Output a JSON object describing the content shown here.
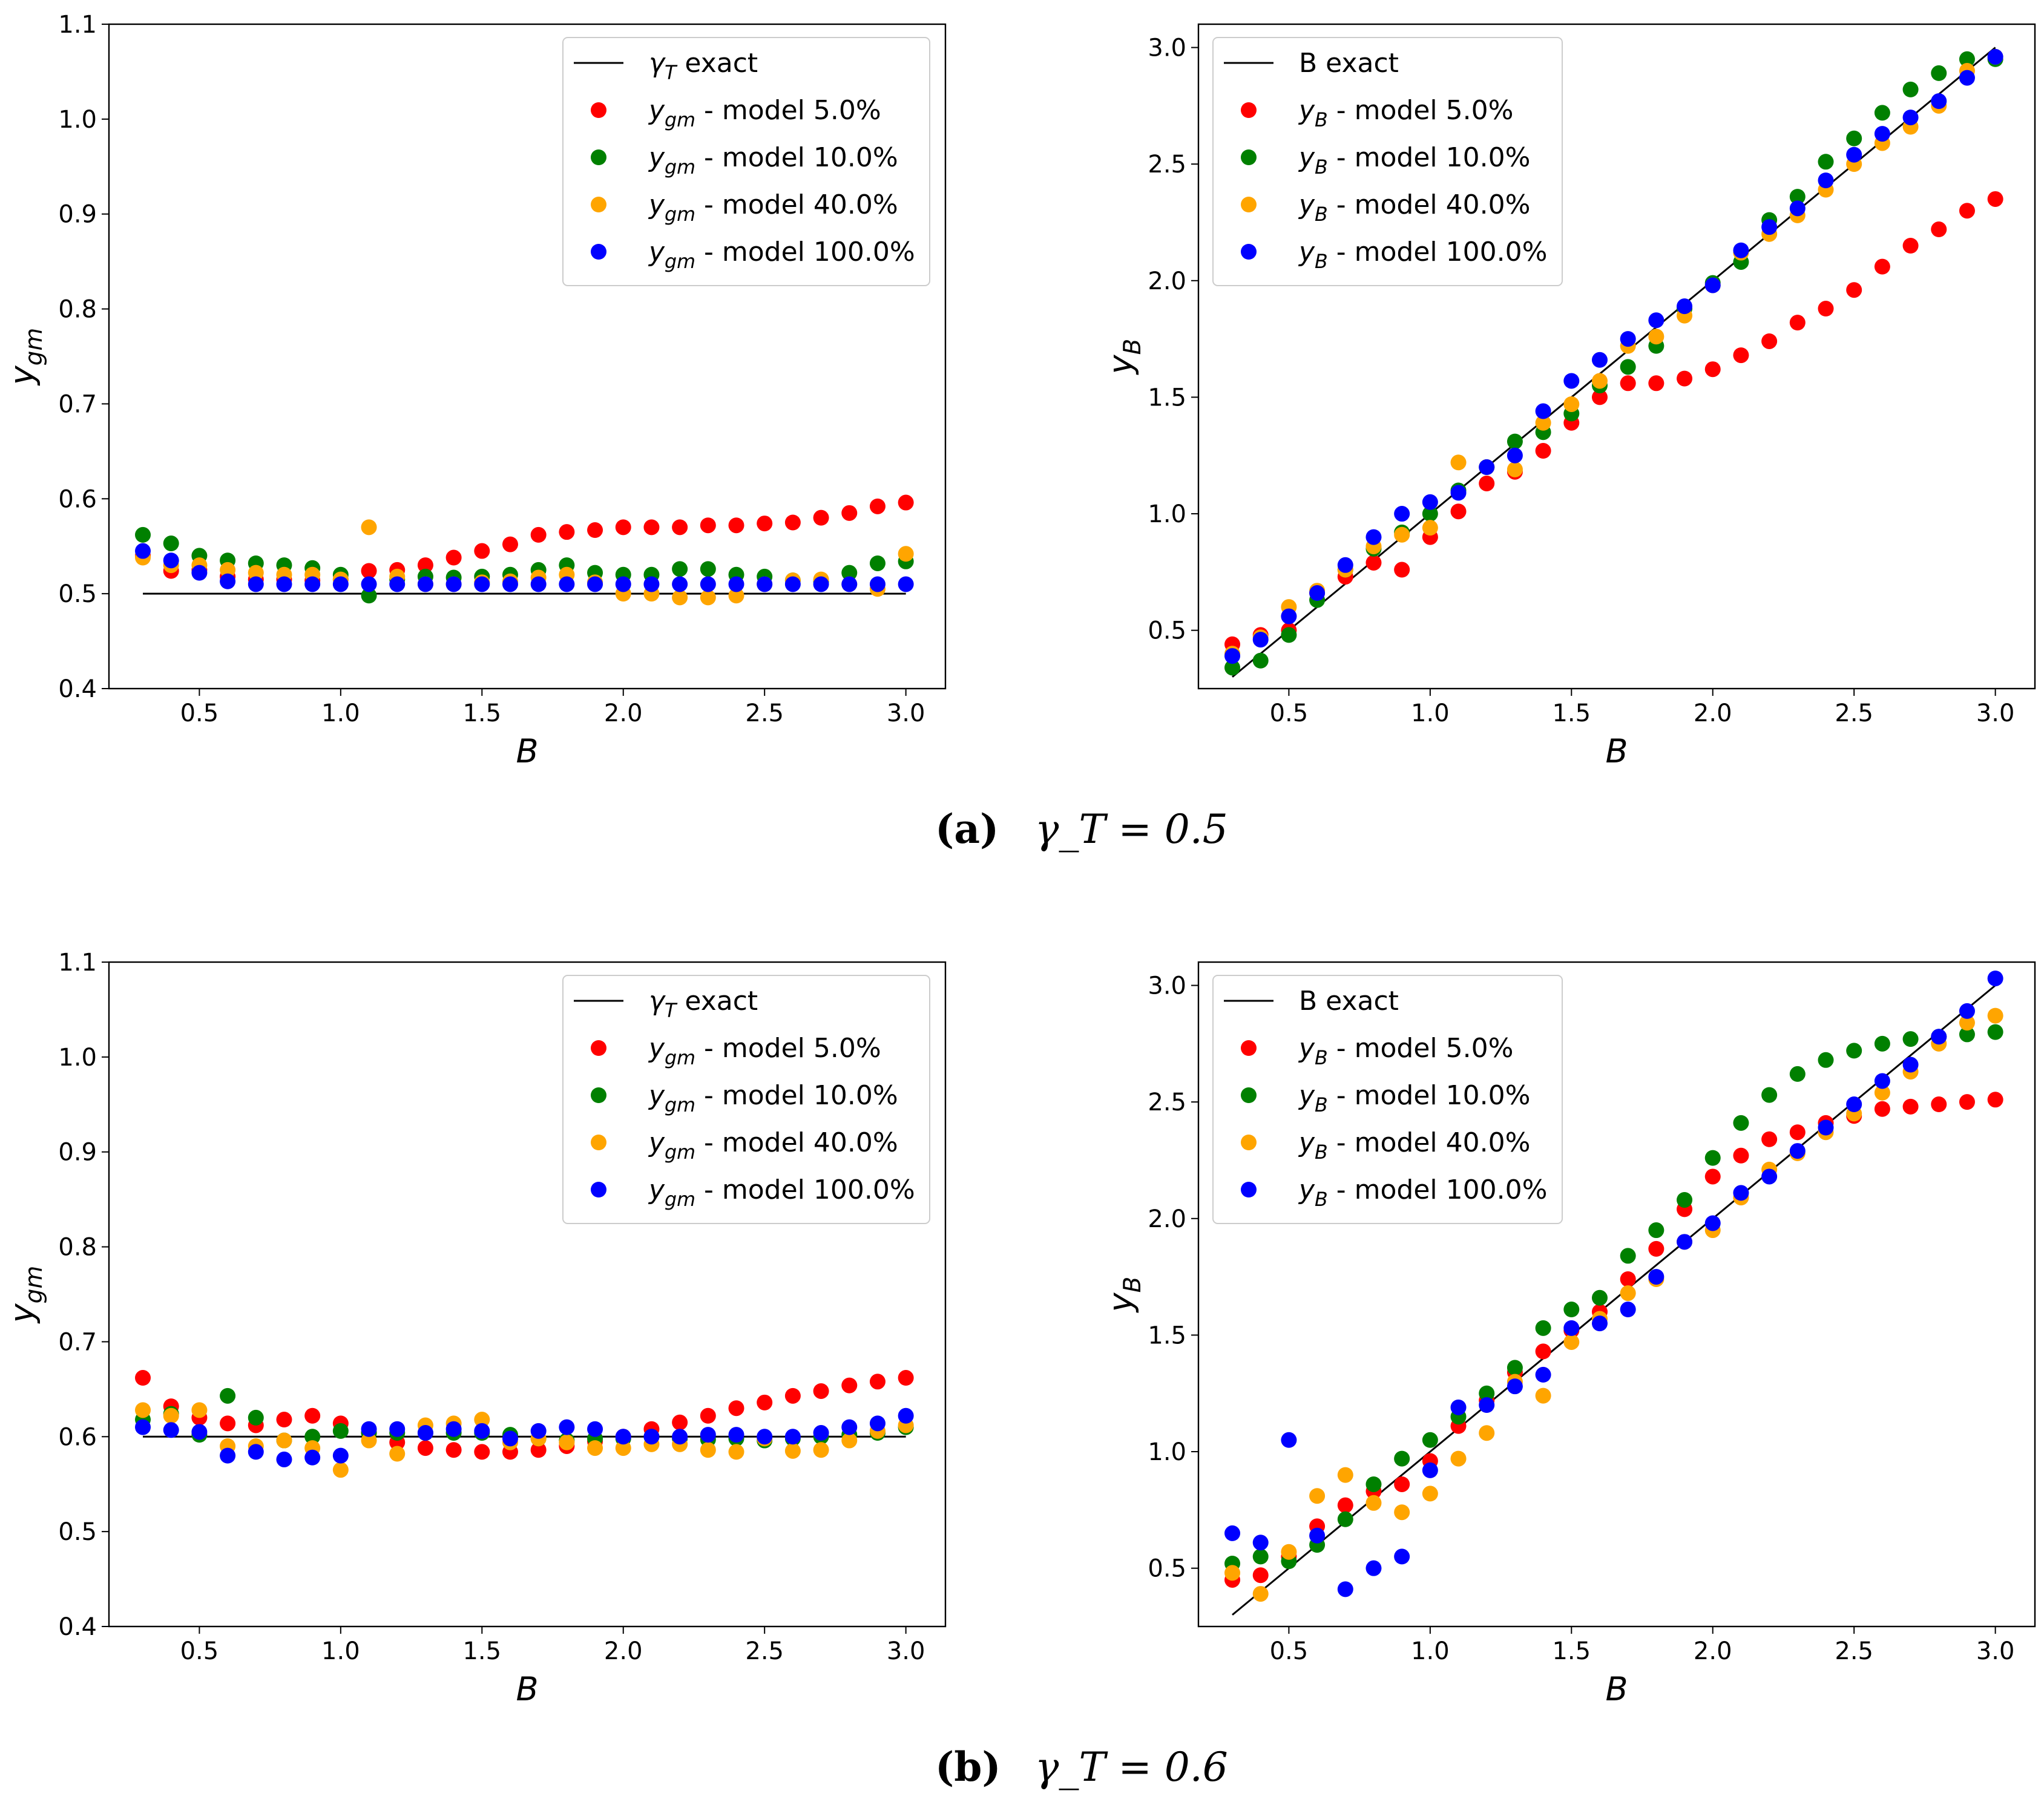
{
  "colors": {
    "model5": "#ff0000",
    "model10": "#008000",
    "model40": "#ffa500",
    "model100": "#0000ff",
    "exact": "#000000"
  },
  "captions": [
    {
      "label": "(a)",
      "text": "γ_T = 0.5"
    },
    {
      "label": "(b)",
      "text": "γ_T = 0.6"
    }
  ],
  "chart_data": [
    {
      "id": "a-left",
      "type": "scatter",
      "xlabel": "B",
      "ylabel": "y_gm",
      "xlim": [
        0.18,
        3.14
      ],
      "ylim": [
        0.4,
        1.1
      ],
      "xticks": [
        "0.5",
        "1.0",
        "1.5",
        "2.0",
        "2.5",
        "3.0"
      ],
      "yticks": [
        "0.4",
        "0.5",
        "0.6",
        "0.7",
        "0.8",
        "0.9",
        "1.0",
        "1.1"
      ],
      "legend_position": "top-right",
      "legend": [
        "γ_T exact",
        "y_gm - model 5.0%",
        "y_gm - model 10.0%",
        "y_gm - model 40.0%",
        "y_gm - model 100.0%"
      ],
      "x": [
        0.3,
        0.4,
        0.5,
        0.6,
        0.7,
        0.8,
        0.9,
        1.0,
        1.1,
        1.2,
        1.3,
        1.4,
        1.5,
        1.6,
        1.7,
        1.8,
        1.9,
        2.0,
        2.1,
        2.2,
        2.3,
        2.4,
        2.5,
        2.6,
        2.7,
        2.8,
        2.9,
        3.0
      ],
      "exact": {
        "x": [
          0.3,
          3.0
        ],
        "y": [
          0.5,
          0.5
        ]
      },
      "series": [
        {
          "name": "model 5.0%",
          "color_key": "model5",
          "values": [
            0.54,
            0.524,
            0.525,
            0.518,
            0.515,
            0.515,
            0.514,
            0.515,
            0.524,
            0.525,
            0.53,
            0.538,
            0.545,
            0.552,
            0.562,
            0.565,
            0.567,
            0.57,
            0.57,
            0.57,
            0.572,
            0.572,
            0.574,
            0.575,
            0.58,
            0.585,
            0.592,
            0.596
          ]
        },
        {
          "name": "model 10.0%",
          "color_key": "model10",
          "values": [
            0.562,
            0.553,
            0.54,
            0.535,
            0.532,
            0.53,
            0.527,
            0.52,
            0.498,
            0.515,
            0.518,
            0.517,
            0.518,
            0.52,
            0.525,
            0.53,
            0.522,
            0.52,
            0.52,
            0.526,
            0.526,
            0.52,
            0.518,
            0.514,
            0.513,
            0.522,
            0.532,
            0.534
          ]
        },
        {
          "name": "model 40.0%",
          "color_key": "model40",
          "values": [
            0.538,
            0.53,
            0.53,
            0.525,
            0.522,
            0.52,
            0.52,
            0.515,
            0.57,
            0.518,
            0.51,
            0.51,
            0.512,
            0.513,
            0.517,
            0.52,
            0.512,
            0.5,
            0.5,
            0.496,
            0.496,
            0.498,
            0.51,
            0.514,
            0.515,
            0.51,
            0.505,
            0.542
          ]
        },
        {
          "name": "model 100.0%",
          "color_key": "model100",
          "values": [
            0.545,
            0.535,
            0.522,
            0.513,
            0.51,
            0.51,
            0.51,
            0.51,
            0.51,
            0.51,
            0.51,
            0.51,
            0.51,
            0.51,
            0.51,
            0.51,
            0.51,
            0.51,
            0.51,
            0.51,
            0.51,
            0.51,
            0.51,
            0.51,
            0.51,
            0.51,
            0.51,
            0.51
          ]
        }
      ]
    },
    {
      "id": "a-right",
      "type": "scatter",
      "xlabel": "B",
      "ylabel": "y_B",
      "xlim": [
        0.18,
        3.14
      ],
      "ylim": [
        0.25,
        3.1
      ],
      "xticks": [
        "0.5",
        "1.0",
        "1.5",
        "2.0",
        "2.5",
        "3.0"
      ],
      "yticks": [
        "0.5",
        "1.0",
        "1.5",
        "2.0",
        "2.5",
        "3.0"
      ],
      "legend_position": "top-left",
      "legend": [
        "B exact",
        "y_B - model 5.0%",
        "y_B - model 10.0%",
        "y_B - model 40.0%",
        "y_B - model 100.0%"
      ],
      "x": [
        0.3,
        0.4,
        0.5,
        0.6,
        0.7,
        0.8,
        0.9,
        1.0,
        1.1,
        1.2,
        1.3,
        1.4,
        1.5,
        1.6,
        1.7,
        1.8,
        1.9,
        2.0,
        2.1,
        2.2,
        2.3,
        2.4,
        2.5,
        2.6,
        2.7,
        2.8,
        2.9,
        3.0
      ],
      "exact": {
        "x": [
          0.3,
          3.0
        ],
        "y": [
          0.3,
          3.0
        ]
      },
      "series": [
        {
          "name": "model 5.0%",
          "color_key": "model5",
          "values": [
            0.44,
            0.48,
            0.5,
            0.66,
            0.73,
            0.79,
            0.76,
            0.9,
            1.01,
            1.13,
            1.18,
            1.27,
            1.39,
            1.5,
            1.56,
            1.56,
            1.58,
            1.62,
            1.68,
            1.74,
            1.82,
            1.88,
            1.96,
            2.06,
            2.15,
            2.22,
            2.3,
            2.35
          ]
        },
        {
          "name": "model 10.0%",
          "color_key": "model10",
          "values": [
            0.34,
            0.37,
            0.48,
            0.63,
            0.76,
            0.85,
            0.92,
            1.0,
            1.1,
            1.2,
            1.31,
            1.35,
            1.43,
            1.55,
            1.63,
            1.72,
            1.88,
            1.99,
            2.08,
            2.26,
            2.36,
            2.51,
            2.61,
            2.72,
            2.82,
            2.89,
            2.95,
            2.95
          ]
        },
        {
          "name": "model 40.0%",
          "color_key": "model40",
          "values": [
            0.4,
            0.47,
            0.6,
            0.67,
            0.76,
            0.86,
            0.91,
            0.94,
            1.22,
            1.2,
            1.19,
            1.39,
            1.47,
            1.57,
            1.72,
            1.76,
            1.85,
            1.98,
            2.12,
            2.2,
            2.28,
            2.39,
            2.5,
            2.59,
            2.66,
            2.75,
            2.9,
            2.96
          ]
        },
        {
          "name": "model 100.0%",
          "color_key": "model100",
          "values": [
            0.39,
            0.46,
            0.56,
            0.66,
            0.78,
            0.9,
            1.0,
            1.05,
            1.09,
            1.2,
            1.25,
            1.44,
            1.57,
            1.66,
            1.75,
            1.83,
            1.89,
            1.98,
            2.13,
            2.23,
            2.31,
            2.43,
            2.54,
            2.63,
            2.7,
            2.77,
            2.87,
            2.96
          ]
        }
      ]
    },
    {
      "id": "b-left",
      "type": "scatter",
      "xlabel": "B",
      "ylabel": "y_gm",
      "xlim": [
        0.18,
        3.14
      ],
      "ylim": [
        0.4,
        1.1
      ],
      "xticks": [
        "0.5",
        "1.0",
        "1.5",
        "2.0",
        "2.5",
        "3.0"
      ],
      "yticks": [
        "0.4",
        "0.5",
        "0.6",
        "0.7",
        "0.8",
        "0.9",
        "1.0",
        "1.1"
      ],
      "legend_position": "top-right",
      "legend": [
        "γ_T exact",
        "y_gm - model 5.0%",
        "y_gm - model 10.0%",
        "y_gm - model 40.0%",
        "y_gm - model 100.0%"
      ],
      "x": [
        0.3,
        0.4,
        0.5,
        0.6,
        0.7,
        0.8,
        0.9,
        1.0,
        1.1,
        1.2,
        1.3,
        1.4,
        1.5,
        1.6,
        1.7,
        1.8,
        1.9,
        2.0,
        2.1,
        2.2,
        2.3,
        2.4,
        2.5,
        2.6,
        2.7,
        2.8,
        2.9,
        3.0
      ],
      "exact": {
        "x": [
          0.3,
          3.0
        ],
        "y": [
          0.6,
          0.6
        ]
      },
      "series": [
        {
          "name": "model 5.0%",
          "color_key": "model5",
          "values": [
            0.662,
            0.632,
            0.62,
            0.614,
            0.612,
            0.618,
            0.622,
            0.614,
            0.604,
            0.594,
            0.588,
            0.586,
            0.584,
            0.584,
            0.586,
            0.59,
            0.595,
            0.6,
            0.608,
            0.615,
            0.622,
            0.63,
            0.636,
            0.643,
            0.648,
            0.654,
            0.658,
            0.662
          ]
        },
        {
          "name": "model 10.0%",
          "color_key": "model10",
          "values": [
            0.618,
            0.624,
            0.602,
            0.643,
            0.62,
            0.596,
            0.6,
            0.606,
            0.604,
            0.604,
            0.604,
            0.604,
            0.604,
            0.602,
            0.598,
            0.596,
            0.598,
            0.598,
            0.6,
            0.598,
            0.597,
            0.598,
            0.596,
            0.598,
            0.6,
            0.602,
            0.604,
            0.61
          ]
        },
        {
          "name": "model 40.0%",
          "color_key": "model40",
          "values": [
            0.628,
            0.622,
            0.628,
            0.59,
            0.59,
            0.596,
            0.588,
            0.565,
            0.596,
            0.582,
            0.612,
            0.614,
            0.618,
            0.594,
            0.598,
            0.594,
            0.588,
            0.588,
            0.592,
            0.592,
            0.586,
            0.584,
            0.598,
            0.585,
            0.586,
            0.596,
            0.606,
            0.612
          ]
        },
        {
          "name": "model 100.0%",
          "color_key": "model100",
          "values": [
            0.61,
            0.607,
            0.605,
            0.58,
            0.584,
            0.576,
            0.578,
            0.58,
            0.608,
            0.608,
            0.604,
            0.608,
            0.606,
            0.598,
            0.606,
            0.61,
            0.608,
            0.6,
            0.6,
            0.6,
            0.602,
            0.602,
            0.6,
            0.6,
            0.604,
            0.61,
            0.614,
            0.622
          ]
        }
      ]
    },
    {
      "id": "b-right",
      "type": "scatter",
      "xlabel": "B",
      "ylabel": "y_B",
      "xlim": [
        0.18,
        3.14
      ],
      "ylim": [
        0.25,
        3.1
      ],
      "xticks": [
        "0.5",
        "1.0",
        "1.5",
        "2.0",
        "2.5",
        "3.0"
      ],
      "yticks": [
        "0.5",
        "1.0",
        "1.5",
        "2.0",
        "2.5",
        "3.0"
      ],
      "legend_position": "top-left",
      "legend": [
        "B exact",
        "y_B - model 5.0%",
        "y_B - model 10.0%",
        "y_B - model 40.0%",
        "y_B - model 100.0%"
      ],
      "x": [
        0.3,
        0.4,
        0.5,
        0.6,
        0.7,
        0.8,
        0.9,
        1.0,
        1.1,
        1.2,
        1.3,
        1.4,
        1.5,
        1.6,
        1.7,
        1.8,
        1.9,
        2.0,
        2.1,
        2.2,
        2.3,
        2.4,
        2.5,
        2.6,
        2.7,
        2.8,
        2.9,
        3.0
      ],
      "exact": {
        "x": [
          0.3,
          3.0
        ],
        "y": [
          0.3,
          3.0
        ]
      },
      "series": [
        {
          "name": "model 5.0%",
          "color_key": "model5",
          "values": [
            0.45,
            0.47,
            0.55,
            0.68,
            0.77,
            0.83,
            0.86,
            0.96,
            1.11,
            1.22,
            1.34,
            1.43,
            1.52,
            1.6,
            1.74,
            1.87,
            2.04,
            2.18,
            2.27,
            2.34,
            2.37,
            2.41,
            2.44,
            2.47,
            2.48,
            2.49,
            2.5,
            2.51
          ]
        },
        {
          "name": "model 10.0%",
          "color_key": "model10",
          "values": [
            0.52,
            0.55,
            0.53,
            0.6,
            0.71,
            0.86,
            0.97,
            1.05,
            1.15,
            1.25,
            1.36,
            1.53,
            1.61,
            1.66,
            1.84,
            1.95,
            2.08,
            2.26,
            2.41,
            2.53,
            2.62,
            2.68,
            2.72,
            2.75,
            2.77,
            2.78,
            2.79,
            2.8
          ]
        },
        {
          "name": "model 40.0%",
          "color_key": "model40",
          "values": [
            0.48,
            0.39,
            0.57,
            0.81,
            0.9,
            0.78,
            0.74,
            0.82,
            0.97,
            1.08,
            1.3,
            1.24,
            1.47,
            1.57,
            1.68,
            1.74,
            1.9,
            1.95,
            2.09,
            2.21,
            2.28,
            2.37,
            2.45,
            2.54,
            2.63,
            2.75,
            2.84,
            2.87
          ]
        },
        {
          "name": "model 100.0%",
          "color_key": "model100",
          "values": [
            0.65,
            0.61,
            1.05,
            0.64,
            0.41,
            0.5,
            0.55,
            0.92,
            1.19,
            1.2,
            1.28,
            1.33,
            1.53,
            1.55,
            1.61,
            1.75,
            1.9,
            1.98,
            2.11,
            2.18,
            2.29,
            2.39,
            2.49,
            2.59,
            2.66,
            2.78,
            2.89,
            3.03
          ]
        }
      ]
    }
  ]
}
